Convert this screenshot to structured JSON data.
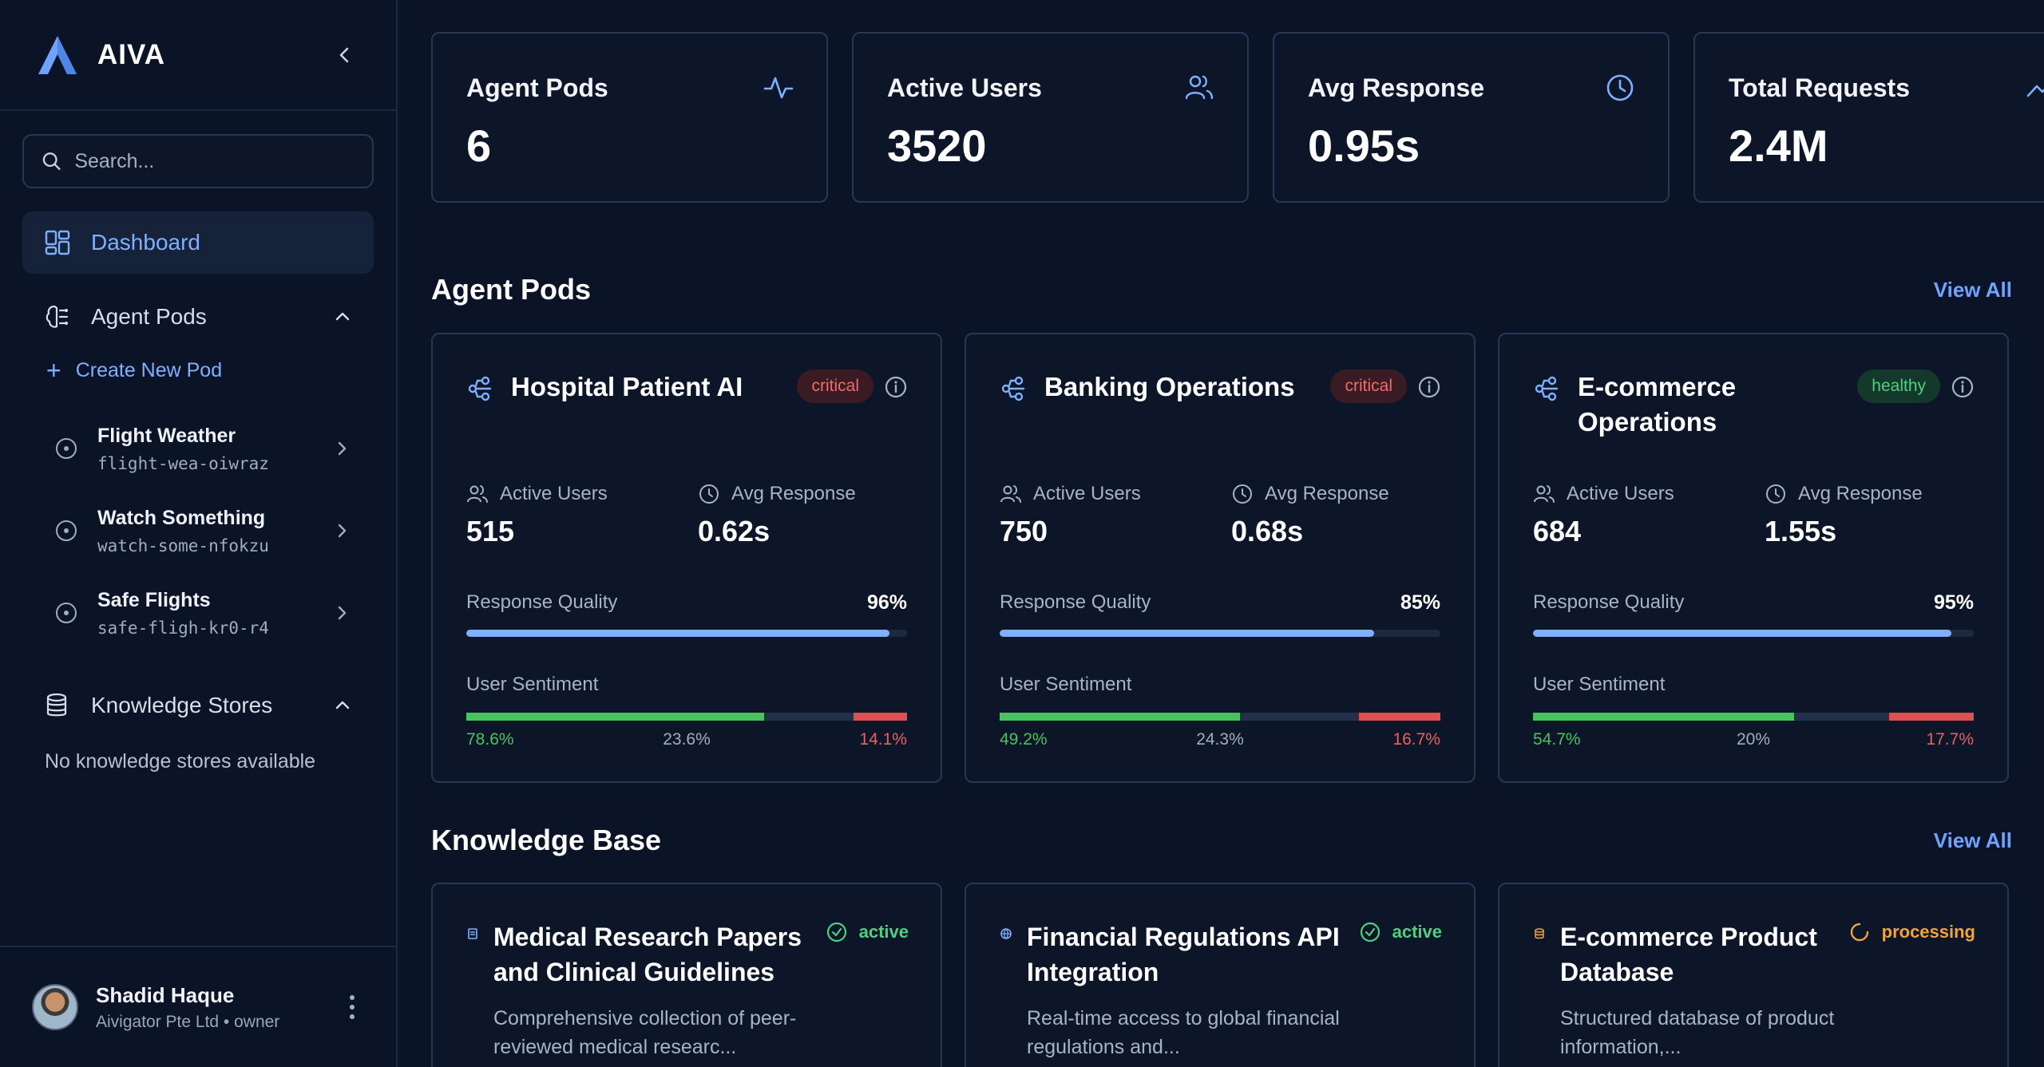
{
  "sidebar": {
    "brand": "AIVA",
    "search_placeholder": "Search...",
    "nav": {
      "dashboard": "Dashboard",
      "agent_pods": "Agent Pods",
      "knowledge_stores": "Knowledge Stores"
    },
    "create_pod": "Create New Pod",
    "pods": [
      {
        "name": "Flight Weather",
        "slug": "flight-wea-oiwraz"
      },
      {
        "name": "Watch Something",
        "slug": "watch-some-nfokzu"
      },
      {
        "name": "Safe Flights",
        "slug": "safe-fligh-kr0-r4"
      }
    ],
    "empty_knowledge": "No knowledge stores available",
    "user": {
      "name": "Shadid Haque",
      "org": "Aivigator Pte Ltd • owner"
    }
  },
  "stats": [
    {
      "title": "Agent Pods",
      "value": "6",
      "icon": "activity-icon"
    },
    {
      "title": "Active Users",
      "value": "3520",
      "icon": "users-icon"
    },
    {
      "title": "Avg Response",
      "value": "0.95s",
      "icon": "clock-icon"
    },
    {
      "title": "Total Requests",
      "value": "2.4M",
      "icon": "trend-icon"
    }
  ],
  "sections": {
    "agent_pods": "Agent Pods",
    "knowledge_base": "Knowledge Base",
    "view_all": "View All"
  },
  "labels": {
    "active_users": "Active Users",
    "avg_response": "Avg Response",
    "response_quality": "Response Quality",
    "user_sentiment": "User Sentiment"
  },
  "pod_cards": [
    {
      "title": "Hospital Patient AI",
      "status": "critical",
      "active_users": "515",
      "avg_response": "0.62s",
      "quality": "96%",
      "quality_pct": 96,
      "sent_pos": "78.6%",
      "sent_neu": "23.6%",
      "sent_neg": "14.1%",
      "pos": 78.6,
      "neu": 23.6,
      "neg": 14.1
    },
    {
      "title": "Banking Operations",
      "status": "critical",
      "active_users": "750",
      "avg_response": "0.68s",
      "quality": "85%",
      "quality_pct": 85,
      "sent_pos": "49.2%",
      "sent_neu": "24.3%",
      "sent_neg": "16.7%",
      "pos": 49.2,
      "neu": 24.3,
      "neg": 16.7
    },
    {
      "title": "E-commerce Operations",
      "status": "healthy",
      "active_users": "684",
      "avg_response": "1.55s",
      "quality": "95%",
      "quality_pct": 95,
      "sent_pos": "54.7%",
      "sent_neu": "20%",
      "sent_neg": "17.7%",
      "pos": 54.7,
      "neu": 20,
      "neg": 17.7
    }
  ],
  "kb_cards": [
    {
      "title": "Medical Research Papers and Clinical Guidelines",
      "status": "active",
      "desc": "Comprehensive collection of peer-reviewed medical researc...",
      "icon": "document-icon"
    },
    {
      "title": "Financial Regulations API Integration",
      "status": "active",
      "desc": "Real-time access to global financial regulations and...",
      "icon": "globe-icon"
    },
    {
      "title": "E-commerce Product Database",
      "status": "processing",
      "desc": "Structured database of product information,...",
      "icon": "database-icon"
    }
  ],
  "colors": {
    "accent": "#7fb0ff",
    "critical": "#ef6b6b",
    "healthy": "#4fd07f",
    "processing": "#f0a340",
    "positive": "#48c45a",
    "negative": "#e0504f"
  }
}
